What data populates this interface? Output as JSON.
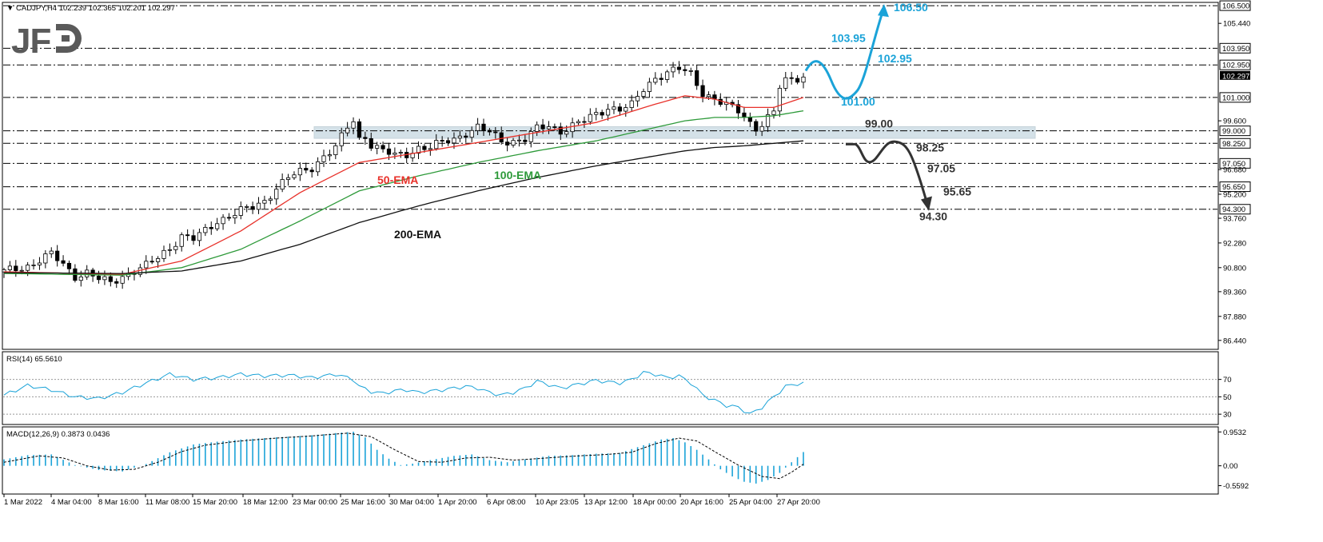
{
  "header": {
    "main": "CADJPY,H4  102.239 102.365 102.201 102.297",
    "rsi": "RSI(14) 65.5610",
    "macd": "MACD(12,26,9) 0.3873 0.0436"
  },
  "logo": {
    "text": "JFD"
  },
  "colors": {
    "bull": "#1ba3d8",
    "bear": "#333333",
    "ema50": "#e8312a",
    "ema100": "#2e9a3a",
    "ema200": "#111111",
    "zone": "#d4e1e8",
    "rsi": "#1ba3d8",
    "macd": "#1ba3d8"
  },
  "chart_data": {
    "type": "line",
    "symbol": "CADJPY",
    "timeframe": "H4",
    "ylim": [
      86.0,
      106.6
    ],
    "price_axis_ticks": [
      "105.440",
      "99.600",
      "96.680",
      "95.200",
      "93.760",
      "92.280",
      "90.800",
      "89.360",
      "87.880",
      "86.440"
    ],
    "x_tick_labels": [
      "1 Mar 2022",
      "4 Mar 04:00",
      "8 Mar 16:00",
      "11 Mar 08:00",
      "15 Mar 20:00",
      "18 Mar 12:00",
      "23 Mar 00:00",
      "25 Mar 16:00",
      "30 Mar 04:00",
      "1 Apr 20:00",
      "6 Apr 08:00",
      "10 Apr 23:05",
      "13 Apr 12:00",
      "18 Apr 00:00",
      "20 Apr 16:00",
      "25 Apr 04:00",
      "27 Apr 20:00"
    ],
    "levels": [
      {
        "value": 106.5,
        "label": "106.500"
      },
      {
        "value": 103.95,
        "label": "103.950"
      },
      {
        "value": 102.95,
        "label": "102.950"
      },
      {
        "value": 101.0,
        "label": "101.000"
      },
      {
        "value": 99.0,
        "label": "99.000"
      },
      {
        "value": 98.25,
        "label": "98.250"
      },
      {
        "value": 97.05,
        "label": "97.050"
      },
      {
        "value": 95.65,
        "label": "95.650"
      },
      {
        "value": 94.3,
        "label": "94.300"
      }
    ],
    "current_price": {
      "value": 102.297,
      "label": "102.297"
    },
    "zone": [
      98.55,
      99.25
    ],
    "price_path": [
      [
        0,
        90.55
      ],
      [
        4,
        90.9
      ],
      [
        8,
        91.6
      ],
      [
        10,
        91.0
      ],
      [
        12,
        90.3
      ],
      [
        14,
        90.5
      ],
      [
        16,
        90.1
      ],
      [
        18,
        89.9
      ],
      [
        20,
        90.3
      ],
      [
        22,
        90.6
      ],
      [
        24,
        90.9
      ],
      [
        26,
        91.4
      ],
      [
        28,
        92.0
      ],
      [
        30,
        92.7
      ],
      [
        32,
        92.5
      ],
      [
        34,
        93.0
      ],
      [
        36,
        93.6
      ],
      [
        38,
        93.9
      ],
      [
        40,
        94.2
      ],
      [
        42,
        94.4
      ],
      [
        44,
        94.8
      ],
      [
        46,
        95.6
      ],
      [
        48,
        96.2
      ],
      [
        50,
        96.5
      ],
      [
        52,
        96.8
      ],
      [
        54,
        97.5
      ],
      [
        56,
        98.0
      ],
      [
        58,
        99.2
      ],
      [
        59,
        99.6
      ],
      [
        60,
        98.5
      ],
      [
        61,
        98.7
      ],
      [
        62,
        98.2
      ],
      [
        64,
        97.8
      ],
      [
        66,
        97.5
      ],
      [
        68,
        97.6
      ],
      [
        70,
        98.0
      ],
      [
        72,
        98.0
      ],
      [
        74,
        98.3
      ],
      [
        76,
        98.5
      ],
      [
        78,
        98.9
      ],
      [
        80,
        99.2
      ],
      [
        82,
        98.9
      ],
      [
        84,
        98.4
      ],
      [
        86,
        98.4
      ],
      [
        88,
        98.5
      ],
      [
        90,
        99.1
      ],
      [
        92,
        99.3
      ],
      [
        94,
        99.0
      ],
      [
        96,
        99.3
      ],
      [
        98,
        99.6
      ],
      [
        100,
        100.0
      ],
      [
        102,
        100.4
      ],
      [
        104,
        100.3
      ],
      [
        106,
        100.5
      ],
      [
        108,
        101.5
      ],
      [
        110,
        102.2
      ],
      [
        112,
        102.5
      ],
      [
        114,
        102.7
      ],
      [
        116,
        102.4
      ],
      [
        118,
        101.3
      ],
      [
        120,
        100.9
      ],
      [
        122,
        100.5
      ],
      [
        124,
        100.2
      ],
      [
        126,
        99.5
      ],
      [
        127,
        99.2
      ],
      [
        128,
        99.4
      ],
      [
        130,
        100.1
      ],
      [
        131,
        101.6
      ],
      [
        132,
        102.0
      ],
      [
        134,
        102.2
      ],
      [
        135,
        102.297
      ]
    ],
    "series": [
      {
        "name": "50-EMA",
        "values": [
          [
            0,
            90.55
          ],
          [
            20,
            90.4
          ],
          [
            30,
            91.2
          ],
          [
            40,
            93.0
          ],
          [
            50,
            95.3
          ],
          [
            60,
            97.1
          ],
          [
            70,
            97.7
          ],
          [
            80,
            98.3
          ],
          [
            90,
            98.9
          ],
          [
            100,
            99.5
          ],
          [
            110,
            100.6
          ],
          [
            115,
            101.1
          ],
          [
            120,
            100.9
          ],
          [
            125,
            100.4
          ],
          [
            130,
            100.4
          ],
          [
            135,
            101.0
          ]
        ]
      },
      {
        "name": "100-EMA",
        "values": [
          [
            0,
            90.45
          ],
          [
            20,
            90.35
          ],
          [
            30,
            90.8
          ],
          [
            40,
            91.9
          ],
          [
            50,
            93.6
          ],
          [
            60,
            95.4
          ],
          [
            70,
            96.3
          ],
          [
            80,
            97.1
          ],
          [
            90,
            97.8
          ],
          [
            100,
            98.4
          ],
          [
            110,
            99.2
          ],
          [
            115,
            99.6
          ],
          [
            120,
            99.8
          ],
          [
            125,
            99.8
          ],
          [
            130,
            99.9
          ],
          [
            135,
            100.2
          ]
        ]
      },
      {
        "name": "200-EMA",
        "values": [
          [
            0,
            90.5
          ],
          [
            20,
            90.45
          ],
          [
            30,
            90.6
          ],
          [
            40,
            91.2
          ],
          [
            50,
            92.2
          ],
          [
            60,
            93.5
          ],
          [
            70,
            94.5
          ],
          [
            80,
            95.4
          ],
          [
            90,
            96.2
          ],
          [
            100,
            96.9
          ],
          [
            110,
            97.5
          ],
          [
            115,
            97.8
          ],
          [
            120,
            98.0
          ],
          [
            125,
            98.1
          ],
          [
            130,
            98.25
          ],
          [
            135,
            98.4
          ]
        ]
      }
    ],
    "scenarios": {
      "bullish": [
        {
          "label": "103.95",
          "value": 103.95
        },
        {
          "label": "102.95",
          "value": 102.95
        },
        {
          "label": "101.00",
          "value": 101.0
        },
        {
          "label": "106.50",
          "value": 106.5
        }
      ],
      "bearish": [
        {
          "label": "99.00",
          "value": 99.0
        },
        {
          "label": "98.25",
          "value": 98.25
        },
        {
          "label": "97.05",
          "value": 97.05
        },
        {
          "label": "95.65",
          "value": 95.65
        },
        {
          "label": "94.30",
          "value": 94.3
        }
      ]
    },
    "rsi": {
      "ylim": [
        20,
        100
      ],
      "levels": [
        {
          "value": 70,
          "label": "70"
        },
        {
          "value": 50,
          "label": "50"
        },
        {
          "value": 30,
          "label": "30"
        }
      ],
      "values": [
        [
          0,
          52
        ],
        [
          4,
          63
        ],
        [
          8,
          58
        ],
        [
          12,
          50
        ],
        [
          16,
          48
        ],
        [
          20,
          55
        ],
        [
          24,
          66
        ],
        [
          28,
          76
        ],
        [
          32,
          70
        ],
        [
          36,
          72
        ],
        [
          40,
          76
        ],
        [
          44,
          74
        ],
        [
          48,
          75
        ],
        [
          52,
          72
        ],
        [
          56,
          76
        ],
        [
          59,
          70
        ],
        [
          60,
          62
        ],
        [
          62,
          56
        ],
        [
          64,
          54
        ],
        [
          66,
          57
        ],
        [
          68,
          58
        ],
        [
          70,
          55
        ],
        [
          74,
          58
        ],
        [
          78,
          62
        ],
        [
          80,
          60
        ],
        [
          82,
          55
        ],
        [
          84,
          52
        ],
        [
          86,
          55
        ],
        [
          88,
          60
        ],
        [
          90,
          68
        ],
        [
          92,
          64
        ],
        [
          94,
          60
        ],
        [
          96,
          63
        ],
        [
          98,
          66
        ],
        [
          100,
          69
        ],
        [
          102,
          67
        ],
        [
          104,
          66
        ],
        [
          106,
          70
        ],
        [
          108,
          78
        ],
        [
          110,
          76
        ],
        [
          112,
          72
        ],
        [
          114,
          74
        ],
        [
          116,
          66
        ],
        [
          118,
          52
        ],
        [
          120,
          46
        ],
        [
          122,
          40
        ],
        [
          124,
          38
        ],
        [
          126,
          30
        ],
        [
          128,
          38
        ],
        [
          130,
          50
        ],
        [
          132,
          62
        ],
        [
          134,
          65
        ],
        [
          135,
          65.5
        ]
      ]
    },
    "macd": {
      "ylim": [
        -0.75,
        1.05
      ],
      "ticks": [
        {
          "value": 0.9532,
          "label": "0.9532"
        },
        {
          "value": 0.0,
          "label": "0.00"
        },
        {
          "value": -0.5592,
          "label": "-0.5592"
        }
      ],
      "hist": [
        [
          0,
          0.18
        ],
        [
          4,
          0.3
        ],
        [
          8,
          0.32
        ],
        [
          12,
          0.02
        ],
        [
          16,
          -0.12
        ],
        [
          20,
          -0.16
        ],
        [
          24,
          0.05
        ],
        [
          28,
          0.38
        ],
        [
          32,
          0.6
        ],
        [
          36,
          0.68
        ],
        [
          40,
          0.74
        ],
        [
          44,
          0.78
        ],
        [
          48,
          0.82
        ],
        [
          52,
          0.86
        ],
        [
          56,
          0.92
        ],
        [
          59,
          0.96
        ],
        [
          61,
          0.8
        ],
        [
          63,
          0.45
        ],
        [
          65,
          0.2
        ],
        [
          67,
          0.02
        ],
        [
          69,
          0.06
        ],
        [
          72,
          0.16
        ],
        [
          76,
          0.28
        ],
        [
          79,
          0.32
        ],
        [
          82,
          0.16
        ],
        [
          85,
          0.1
        ],
        [
          88,
          0.18
        ],
        [
          92,
          0.28
        ],
        [
          96,
          0.3
        ],
        [
          100,
          0.34
        ],
        [
          104,
          0.36
        ],
        [
          108,
          0.58
        ],
        [
          111,
          0.74
        ],
        [
          113,
          0.78
        ],
        [
          115,
          0.66
        ],
        [
          117,
          0.45
        ],
        [
          119,
          0.18
        ],
        [
          121,
          -0.1
        ],
        [
          123,
          -0.3
        ],
        [
          125,
          -0.45
        ],
        [
          127,
          -0.5
        ],
        [
          129,
          -0.4
        ],
        [
          131,
          -0.2
        ],
        [
          133,
          0.1
        ],
        [
          135,
          0.387
        ]
      ],
      "signal": [
        [
          0,
          0.1
        ],
        [
          6,
          0.28
        ],
        [
          10,
          0.22
        ],
        [
          14,
          0.0
        ],
        [
          18,
          -0.12
        ],
        [
          22,
          -0.1
        ],
        [
          26,
          0.1
        ],
        [
          30,
          0.4
        ],
        [
          34,
          0.58
        ],
        [
          40,
          0.7
        ],
        [
          46,
          0.78
        ],
        [
          52,
          0.84
        ],
        [
          58,
          0.92
        ],
        [
          62,
          0.82
        ],
        [
          66,
          0.45
        ],
        [
          70,
          0.12
        ],
        [
          74,
          0.1
        ],
        [
          78,
          0.22
        ],
        [
          82,
          0.24
        ],
        [
          86,
          0.16
        ],
        [
          90,
          0.2
        ],
        [
          96,
          0.27
        ],
        [
          102,
          0.32
        ],
        [
          106,
          0.38
        ],
        [
          110,
          0.62
        ],
        [
          114,
          0.78
        ],
        [
          117,
          0.7
        ],
        [
          120,
          0.4
        ],
        [
          124,
          0.02
        ],
        [
          128,
          -0.3
        ],
        [
          131,
          -0.36
        ],
        [
          133,
          -0.18
        ],
        [
          135,
          0.0436
        ]
      ]
    }
  }
}
